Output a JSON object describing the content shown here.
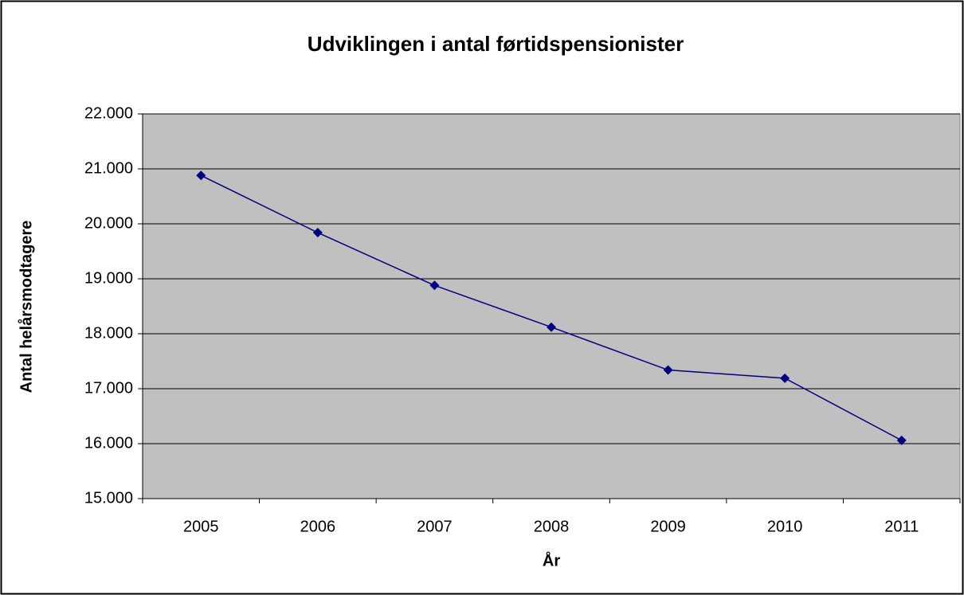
{
  "chart_data": {
    "type": "line",
    "title": "Udviklingen i antal førtidspensionister",
    "x_label": "År",
    "y_label": "Antal helårsmodtagere",
    "categories": [
      "2005",
      "2006",
      "2007",
      "2008",
      "2009",
      "2010",
      "2011"
    ],
    "series": [
      {
        "name": "Antal helårsmodtagere",
        "color": "#000080",
        "values": [
          20880,
          19840,
          18880,
          18120,
          17340,
          17190,
          16060
        ]
      }
    ],
    "ylim": [
      15000,
      22000
    ],
    "yticks": [
      {
        "value": 15000,
        "label": "15.000"
      },
      {
        "value": 16000,
        "label": "16.000"
      },
      {
        "value": 17000,
        "label": "17.000"
      },
      {
        "value": 18000,
        "label": "18.000"
      },
      {
        "value": 19000,
        "label": "19.000"
      },
      {
        "value": 20000,
        "label": "20.000"
      },
      {
        "value": 21000,
        "label": "21.000"
      },
      {
        "value": 22000,
        "label": "22.000"
      }
    ],
    "grid": true
  }
}
